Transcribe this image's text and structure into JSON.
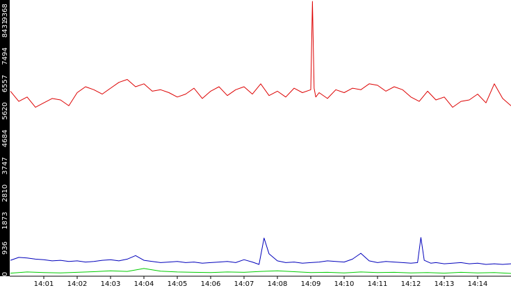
{
  "chart_data": {
    "type": "line",
    "title": "",
    "xlabel": "",
    "ylabel": "",
    "ylim": [
      0,
      9368
    ],
    "y_ticks": [
      "0",
      "936",
      "1873",
      "2810",
      "3747",
      "4684",
      "5620",
      "6557",
      "7494",
      "8431",
      "9368"
    ],
    "x_ticks": [
      "14:01",
      "14:02",
      "14:03",
      "14:04",
      "14:05",
      "14:06",
      "14:07",
      "14:08",
      "14:09",
      "14:10",
      "14:11",
      "14:12",
      "14:13",
      "14:14"
    ],
    "x_range_minutes": [
      0,
      15
    ],
    "grid": false,
    "legend": "none",
    "series": [
      {
        "color": "#dd0000",
        "x": [
          0.0,
          0.25,
          0.5,
          0.75,
          1.0,
          1.25,
          1.5,
          1.75,
          2.0,
          2.25,
          2.5,
          2.75,
          3.0,
          3.25,
          3.5,
          3.75,
          4.0,
          4.25,
          4.5,
          4.75,
          5.0,
          5.25,
          5.5,
          5.75,
          6.0,
          6.25,
          6.5,
          6.75,
          7.0,
          7.25,
          7.5,
          7.75,
          8.0,
          8.25,
          8.5,
          8.75,
          9.0,
          9.05,
          9.1,
          9.15,
          9.25,
          9.5,
          9.75,
          10.0,
          10.25,
          10.5,
          10.75,
          11.0,
          11.25,
          11.5,
          11.75,
          12.0,
          12.25,
          12.5,
          12.75,
          13.0,
          13.25,
          13.5,
          13.75,
          14.0,
          14.25,
          14.5,
          14.75,
          15.0
        ],
        "values": [
          6300,
          5950,
          6100,
          5750,
          5900,
          6050,
          6000,
          5800,
          6250,
          6450,
          6350,
          6200,
          6400,
          6600,
          6700,
          6450,
          6550,
          6300,
          6350,
          6250,
          6100,
          6200,
          6400,
          6050,
          6300,
          6450,
          6150,
          6350,
          6450,
          6200,
          6550,
          6150,
          6300,
          6100,
          6400,
          6250,
          6350,
          9368,
          6400,
          6100,
          6250,
          6050,
          6350,
          6250,
          6400,
          6350,
          6550,
          6500,
          6300,
          6450,
          6350,
          6100,
          5950,
          6300,
          6000,
          6100,
          5750,
          5950,
          6000,
          6200,
          5900,
          6550,
          6050,
          5800
        ]
      },
      {
        "color": "#0000bb",
        "x": [
          0.0,
          0.25,
          0.5,
          0.75,
          1.0,
          1.25,
          1.5,
          1.75,
          2.0,
          2.25,
          2.5,
          2.75,
          3.0,
          3.25,
          3.5,
          3.75,
          4.0,
          4.25,
          4.5,
          4.75,
          5.0,
          5.25,
          5.5,
          5.75,
          6.0,
          6.25,
          6.5,
          6.75,
          7.0,
          7.25,
          7.45,
          7.6,
          7.75,
          8.0,
          8.25,
          8.5,
          8.75,
          9.0,
          9.25,
          9.5,
          9.75,
          10.0,
          10.25,
          10.5,
          10.75,
          11.0,
          11.25,
          11.5,
          11.75,
          12.0,
          12.2,
          12.3,
          12.4,
          12.6,
          12.75,
          13.0,
          13.25,
          13.5,
          13.75,
          14.0,
          14.25,
          14.5,
          14.75,
          15.0
        ],
        "values": [
          520,
          620,
          600,
          560,
          540,
          500,
          520,
          480,
          500,
          460,
          480,
          520,
          540,
          500,
          560,
          680,
          520,
          480,
          440,
          460,
          480,
          440,
          460,
          420,
          440,
          460,
          480,
          440,
          540,
          460,
          380,
          1280,
          740,
          500,
          440,
          460,
          420,
          440,
          460,
          500,
          480,
          460,
          560,
          760,
          500,
          440,
          480,
          460,
          440,
          420,
          440,
          1300,
          520,
          420,
          440,
          400,
          420,
          440,
          400,
          420,
          380,
          400,
          380,
          400
        ]
      },
      {
        "color": "#00cc00",
        "x": [
          0.0,
          0.5,
          1.0,
          1.5,
          2.0,
          2.5,
          3.0,
          3.5,
          4.0,
          4.5,
          5.0,
          5.5,
          6.0,
          6.5,
          7.0,
          7.5,
          8.0,
          8.5,
          9.0,
          9.5,
          10.0,
          10.5,
          11.0,
          11.5,
          12.0,
          12.5,
          13.0,
          13.5,
          14.0,
          14.5,
          15.0
        ],
        "values": [
          80,
          120,
          100,
          90,
          110,
          130,
          160,
          140,
          240,
          150,
          120,
          110,
          100,
          120,
          110,
          140,
          160,
          130,
          100,
          110,
          90,
          120,
          100,
          110,
          90,
          100,
          80,
          110,
          90,
          100,
          70
        ]
      }
    ]
  }
}
